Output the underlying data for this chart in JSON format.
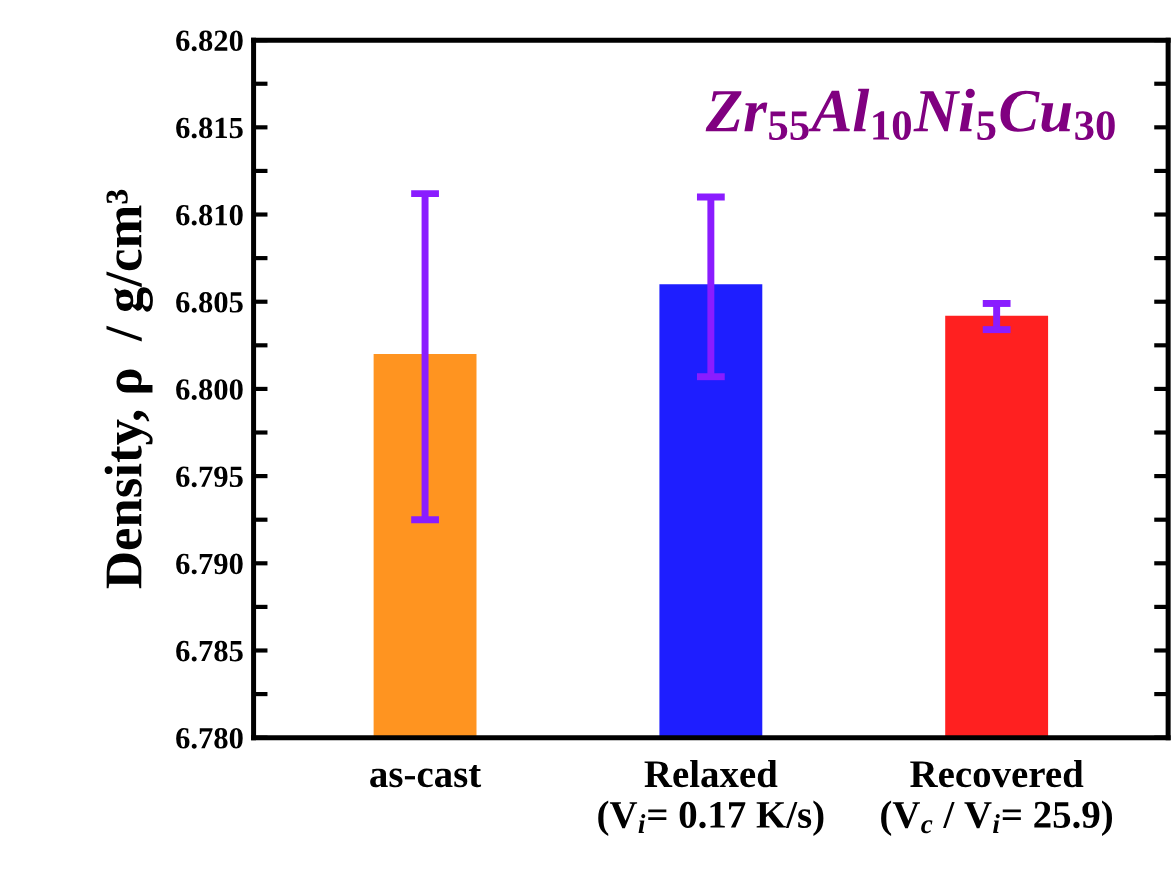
{
  "chart_data": {
    "type": "bar",
    "title": "Zr$_{55}$Al$_{10}$Ni$_{5}$Cu$_{30}$",
    "ylabel": "Density, ρ  / g/cm³",
    "categories": [
      "as-cast",
      "Relaxed\n(V$_{i}$= 0.17 K/s)",
      "Recovered\n(V$_{c}$ / V$_{i}$= 25.9)"
    ],
    "values": [
      6.802,
      6.806,
      6.8042
    ],
    "colors": [
      "#ff9420",
      "#1e1eff",
      "#ff2020"
    ],
    "errors": [
      [
        6.7925,
        6.8112
      ],
      [
        6.8007,
        6.811
      ],
      [
        6.8034,
        6.8049
      ]
    ],
    "ylim": [
      6.78,
      6.82
    ],
    "yticks": [
      {
        "value": 6.78,
        "label": "6.780"
      },
      {
        "value": 6.7825,
        "label": null
      },
      6.785,
      {
        "value": 6.7875,
        "label": null
      },
      {
        "value": 6.79,
        "label": "6.790"
      },
      {
        "value": 6.7925,
        "label": null
      },
      6.795,
      {
        "value": 6.7975,
        "label": null
      },
      {
        "value": 6.8,
        "label": "6.800"
      },
      {
        "value": 6.8025,
        "label": null
      },
      6.805,
      {
        "value": 6.8075,
        "label": null
      },
      {
        "value": 6.81,
        "label": "6.810"
      },
      {
        "value": 6.8125,
        "label": null
      },
      6.815,
      {
        "value": 6.8175,
        "label": null
      },
      {
        "value": 6.82,
        "label": "6.820"
      }
    ],
    "grid": false
  }
}
